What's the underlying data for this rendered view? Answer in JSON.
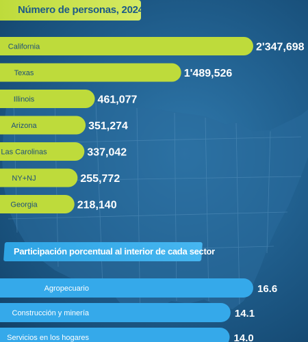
{
  "header_top": "Número de personas, 2024",
  "header_bottom": "Participación porcentual al interior de cada sector",
  "colors": {
    "top_bar": "#bedb3b",
    "bottom_bar": "#35a9ea",
    "background": "#1d5a87"
  },
  "chart_data": [
    {
      "type": "bar",
      "orientation": "horizontal",
      "title": "Número de personas, 2024",
      "categories": [
        "California",
        "Texas",
        "Illinois",
        "Arizona",
        "Las Carolinas",
        "NY+NJ",
        "Georgia"
      ],
      "values": [
        2347698,
        1489526,
        461077,
        351274,
        337042,
        255772,
        218140
      ],
      "value_labels": [
        "2'347,698",
        "1'489,526",
        "461,077",
        "351,274",
        "337,042",
        "255,772",
        "218,140"
      ]
    },
    {
      "type": "bar",
      "orientation": "horizontal",
      "title": "Participación porcentual al interior de cada sector",
      "categories": [
        "Agropecuario",
        "Construcción y minería",
        "Servicios en los hogares"
      ],
      "values": [
        16.6,
        14.1,
        14.0
      ],
      "value_labels": [
        "16.6",
        "14.1",
        "14.0"
      ]
    }
  ]
}
